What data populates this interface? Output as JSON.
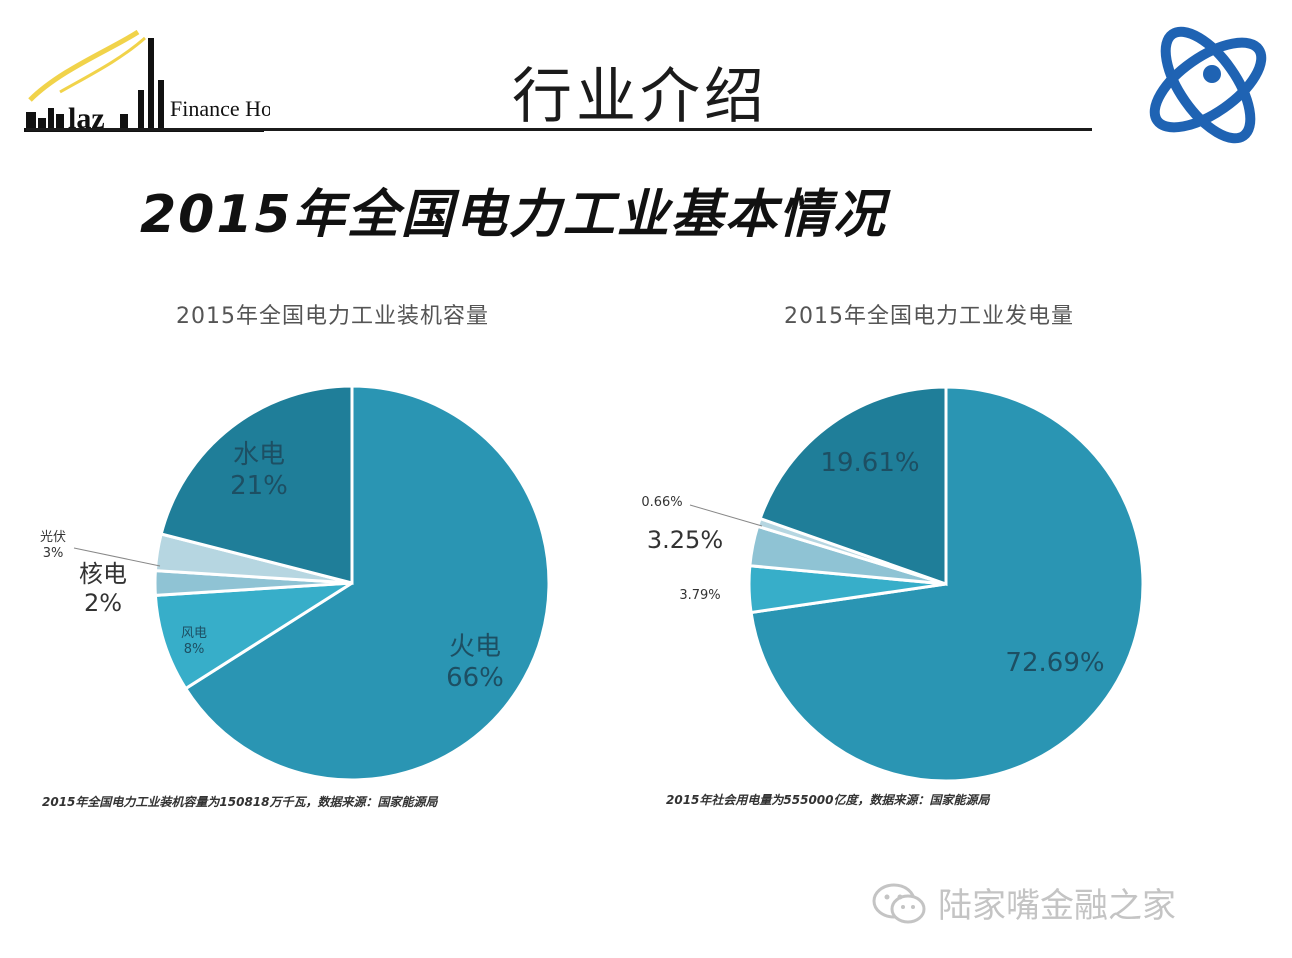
{
  "header": {
    "title": "行业介绍",
    "logo_left_text": "Finance House",
    "main_title": "2015年全国电力工业基本情况"
  },
  "colors": {
    "thermal": "#2a95b3",
    "hydro": "#1f7e99",
    "wind": "#37aec9",
    "solar": "#b6d6e1",
    "nuclear": "#8fc3d4",
    "edge": "#ffffff",
    "logo_blue": "#1f63b3"
  },
  "chart_data": [
    {
      "type": "pie",
      "title": "2015年全国电力工业装机容量",
      "slices": [
        {
          "label": "火电",
          "value": 66,
          "value_text": "66%",
          "color": "#2a95b3"
        },
        {
          "label": "风电",
          "value": 8,
          "value_text": "8%",
          "color": "#37aec9"
        },
        {
          "label": "核电",
          "value": 2,
          "value_text": "2%",
          "color": "#8fc3d4"
        },
        {
          "label": "光伏",
          "value": 3,
          "value_text": "3%",
          "color": "#b6d6e1"
        },
        {
          "label": "水电",
          "value": 21,
          "value_text": "21%",
          "color": "#1f7e99"
        }
      ],
      "footnote": "2015年全国电力工业装机容量为150818万千瓦，数据来源：国家能源局"
    },
    {
      "type": "pie",
      "title": "2015年全国电力工业发电量",
      "slices": [
        {
          "label": "",
          "value": 72.69,
          "value_text": "72.69%",
          "color": "#2a95b3"
        },
        {
          "label": "",
          "value": 3.79,
          "value_text": "3.79%",
          "color": "#37aec9"
        },
        {
          "label": "",
          "value": 3.25,
          "value_text": "3.25%",
          "color": "#8fc3d4"
        },
        {
          "label": "",
          "value": 0.66,
          "value_text": "0.66%",
          "color": "#b6d6e1"
        },
        {
          "label": "",
          "value": 19.61,
          "value_text": "19.61%",
          "color": "#1f7e99"
        }
      ],
      "footnote": "2015年社会用电量为555000亿度，数据来源：国家能源局"
    }
  ],
  "watermark": {
    "text": "陆家嘴金融之家",
    "icon": "wechat-icon"
  }
}
